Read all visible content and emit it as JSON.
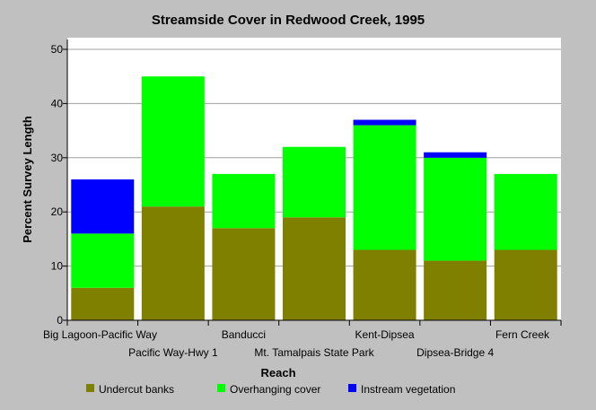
{
  "chart_data": {
    "type": "bar",
    "stacked": true,
    "title": "Streamside Cover in Redwood Creek, 1995",
    "xlabel": "Reach",
    "ylabel": "Percent Survey Length",
    "ylim": [
      0,
      50
    ],
    "yticks": [
      0,
      10,
      20,
      30,
      40,
      50
    ],
    "grid": "horizontal",
    "legend_position": "bottom",
    "categories": [
      "Big Lagoon-Pacific Way",
      "Pacific Way-Hwy 1",
      "Banducci",
      "Mt. Tamalpais State Park",
      "Kent-Dipsea",
      "Dipsea-Bridge 4",
      "Fern Creek"
    ],
    "series": [
      {
        "name": "Undercut banks",
        "color": "#808000",
        "values": [
          6,
          21,
          17,
          19,
          13,
          11,
          13
        ]
      },
      {
        "name": "Overhanging cover",
        "color": "#00ff00",
        "values": [
          10,
          24,
          10,
          13,
          23,
          19,
          14
        ]
      },
      {
        "name": "Instream vegetation",
        "color": "#0000ff",
        "values": [
          10,
          0,
          0,
          0,
          1,
          1,
          0
        ]
      }
    ]
  }
}
